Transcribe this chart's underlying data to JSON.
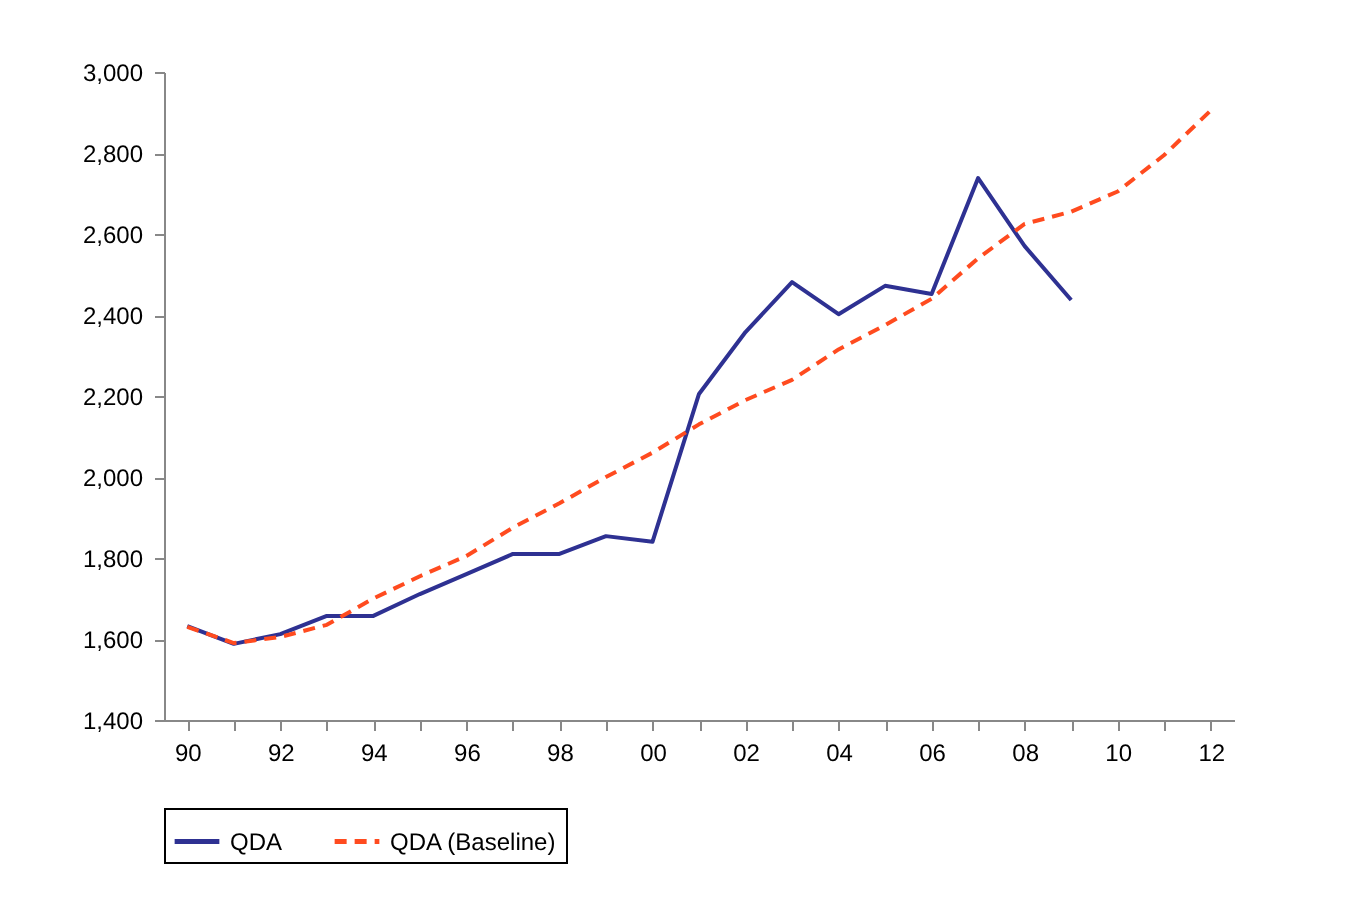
{
  "chart_data": {
    "type": "line",
    "categories": [
      "90",
      null,
      "92",
      null,
      "94",
      null,
      "96",
      null,
      "98",
      null,
      "00",
      null,
      "02",
      null,
      "04",
      null,
      "06",
      null,
      "08",
      null,
      "10",
      null,
      "12"
    ],
    "series": [
      {
        "name": "QDA",
        "color": "#2e3192",
        "line_style": "solid",
        "values": [
          1632,
          1588,
          1612,
          1657,
          1657,
          1711,
          1760,
          1810,
          1810,
          1854,
          1840,
          2205,
          2358,
          2481,
          2402,
          2472,
          2452,
          2738,
          2570,
          2437,
          null,
          null,
          null
        ]
      },
      {
        "name": "QDA (Baseline)",
        "color": "#ff4b1f",
        "line_style": "dashed",
        "values": [
          1630,
          1590,
          1605,
          1635,
          1700,
          1755,
          1805,
          1875,
          1935,
          2000,
          2060,
          2130,
          2190,
          2240,
          2315,
          2375,
          2440,
          2540,
          2625,
          2655,
          2705,
          2795,
          2905
        ]
      }
    ],
    "ylim": [
      1400,
      3000
    ],
    "yticks": [
      {
        "value": 1400,
        "label": "1,400"
      },
      {
        "value": 1600,
        "label": "1,600"
      },
      {
        "value": 1800,
        "label": "1,800"
      },
      {
        "value": 2000,
        "label": "2,000"
      },
      {
        "value": 2200,
        "label": "2,200"
      },
      {
        "value": 2400,
        "label": "2,400"
      },
      {
        "value": 2600,
        "label": "2,600"
      },
      {
        "value": 2800,
        "label": "2,800"
      },
      {
        "value": 3000,
        "label": "3,000"
      }
    ],
    "grid": false,
    "legend": "bottom",
    "marker": "none"
  }
}
